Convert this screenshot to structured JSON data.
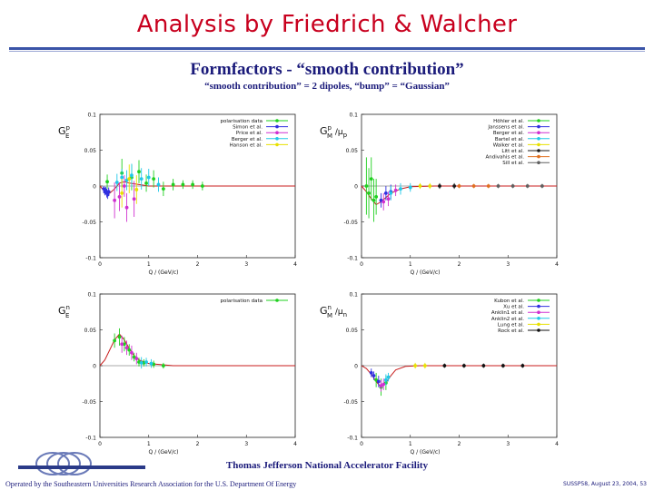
{
  "slide": {
    "title": "Analysis by Friedrich & Walcher",
    "heading": "Formfactors - “smooth contribution”",
    "subheading": "“smooth contribution” = 2 dipoles, “bump” = “Gaussian”",
    "footer_org": "Thomas Jefferson National Accelerator Facility",
    "footer_operated": "Operated by the Southeastern Universities Research Association for the U.S. Department Of Energy",
    "footer_date": "SUSSP58, August 23, 2004, 53",
    "logo_text": "Jefferson Lab",
    "colors": {
      "title": "#c8001e",
      "text": "#1a1a7a",
      "rule": "#3a54a8",
      "fit_curve": "#c81e1e"
    }
  },
  "chart_data": [
    {
      "type": "scatter",
      "ylabel": "G_E^p",
      "xlabel": "Q / (GeV/c)",
      "xlim": [
        0,
        4
      ],
      "ylim": [
        -0.1,
        0.1
      ],
      "xticks": [
        "0",
        "1",
        "2",
        "3",
        "4"
      ],
      "yticks": [
        "0.1",
        "0.05",
        "0",
        "-0.05",
        "-0.1"
      ],
      "legend_position": "top-right",
      "series": [
        {
          "name": "polarisation data",
          "color": "#1fd01f",
          "points": [
            [
              0.15,
              0.006
            ],
            [
              0.45,
              0.018
            ],
            [
              0.65,
              0.012
            ],
            [
              0.8,
              0.02
            ],
            [
              0.95,
              0.004
            ],
            [
              1.1,
              0.01
            ],
            [
              1.3,
              -0.004
            ],
            [
              1.5,
              0.002
            ],
            [
              1.7,
              0.002
            ],
            [
              1.9,
              0.002
            ],
            [
              2.1,
              0.0
            ]
          ],
          "err": [
            0.01,
            0.02,
            0.018,
            0.016,
            0.012,
            0.012,
            0.01,
            0.008,
            0.006,
            0.006,
            0.006
          ]
        },
        {
          "name": "Simon et al.",
          "color": "#3030e0",
          "points": [
            [
              0.08,
              -0.004
            ],
            [
              0.1,
              -0.008
            ],
            [
              0.12,
              -0.006
            ],
            [
              0.14,
              -0.01
            ],
            [
              0.16,
              -0.012
            ],
            [
              0.18,
              -0.008
            ]
          ],
          "err": [
            0.004,
            0.005,
            0.005,
            0.006,
            0.006,
            0.006
          ]
        },
        {
          "name": "Price et al.",
          "color": "#d030d0",
          "points": [
            [
              0.3,
              -0.02
            ],
            [
              0.4,
              -0.015
            ],
            [
              0.5,
              0.0
            ],
            [
              0.55,
              -0.03
            ],
            [
              0.7,
              -0.018
            ]
          ],
          "err": [
            0.025,
            0.02,
            0.015,
            0.02,
            0.025
          ]
        },
        {
          "name": "Berger et al.",
          "color": "#20c8e8",
          "points": [
            [
              0.35,
              0.005
            ],
            [
              0.45,
              0.012
            ],
            [
              0.55,
              0.008
            ],
            [
              0.65,
              0.015
            ],
            [
              0.85,
              0.01
            ],
            [
              1.0,
              0.012
            ],
            [
              1.2,
              0.002
            ]
          ],
          "err": [
            0.012,
            0.012,
            0.014,
            0.016,
            0.015,
            0.012,
            0.01
          ]
        },
        {
          "name": "Hanson et al.",
          "color": "#e8e000",
          "points": [
            [
              0.45,
              -0.01
            ],
            [
              0.6,
              0.01
            ],
            [
              0.75,
              -0.005
            ]
          ],
          "err": [
            0.02,
            0.02,
            0.02
          ]
        }
      ],
      "fit": [
        [
          0,
          0
        ],
        [
          0.1,
          -0.008
        ],
        [
          0.2,
          -0.01
        ],
        [
          0.3,
          -0.004
        ],
        [
          0.4,
          0.004
        ],
        [
          0.5,
          0.006
        ],
        [
          0.6,
          0.004
        ],
        [
          0.8,
          0.002
        ],
        [
          1.0,
          0.0
        ],
        [
          1.5,
          0.0
        ],
        [
          4,
          0
        ]
      ]
    },
    {
      "type": "scatter",
      "ylabel": "G_M^p / μ_p",
      "xlabel": "Q / (GeV/c)",
      "xlim": [
        0,
        4
      ],
      "ylim": [
        -0.1,
        0.1
      ],
      "xticks": [
        "0",
        "1",
        "2",
        "3",
        "4"
      ],
      "yticks": [
        "0.1",
        "0.05",
        "0",
        "-0.05",
        "-0.1"
      ],
      "legend_position": "top-right",
      "series": [
        {
          "name": "Höhler et al.",
          "color": "#1fd01f",
          "points": [
            [
              0.1,
              0.0
            ],
            [
              0.15,
              -0.01
            ],
            [
              0.2,
              0.01
            ],
            [
              0.25,
              -0.02
            ],
            [
              0.3,
              -0.015
            ]
          ],
          "err": [
            0.04,
            0.035,
            0.03,
            0.03,
            0.025
          ]
        },
        {
          "name": "Janssens et al.",
          "color": "#3030e0",
          "points": [
            [
              0.4,
              -0.02
            ],
            [
              0.5,
              -0.01
            ],
            [
              0.6,
              -0.008
            ]
          ],
          "err": [
            0.01,
            0.01,
            0.01
          ]
        },
        {
          "name": "Berger et al.",
          "color": "#d030d0",
          "points": [
            [
              0.45,
              -0.022
            ],
            [
              0.55,
              -0.018
            ],
            [
              0.7,
              -0.006
            ]
          ],
          "err": [
            0.012,
            0.01,
            0.008
          ]
        },
        {
          "name": "Bartel et al.",
          "color": "#20c8e8",
          "points": [
            [
              0.6,
              -0.01
            ],
            [
              0.8,
              -0.004
            ],
            [
              1.0,
              -0.002
            ]
          ],
          "err": [
            0.01,
            0.008,
            0.006
          ]
        },
        {
          "name": "Walker et al.",
          "color": "#e8e000",
          "points": [
            [
              1.2,
              0.0
            ],
            [
              1.4,
              0.0
            ]
          ],
          "err": [
            0.004,
            0.004
          ]
        },
        {
          "name": "Litt et al.",
          "color": "#1a1a1a",
          "points": [
            [
              1.6,
              0.0
            ],
            [
              1.9,
              0.0
            ]
          ],
          "err": [
            0.004,
            0.004
          ]
        },
        {
          "name": "Andivahis et al.",
          "color": "#e07020",
          "points": [
            [
              2.0,
              0.0
            ],
            [
              2.3,
              0.0
            ],
            [
              2.6,
              0.0
            ]
          ],
          "err": [
            0.003,
            0.003,
            0.003
          ]
        },
        {
          "name": "Sill et al.",
          "color": "#606060",
          "points": [
            [
              2.8,
              0.0
            ],
            [
              3.1,
              0.0
            ],
            [
              3.4,
              0.0
            ],
            [
              3.7,
              0.0
            ]
          ],
          "err": [
            0.003,
            0.003,
            0.003,
            0.003
          ]
        }
      ],
      "fit": [
        [
          0,
          0
        ],
        [
          0.1,
          -0.008
        ],
        [
          0.2,
          -0.018
        ],
        [
          0.3,
          -0.026
        ],
        [
          0.4,
          -0.022
        ],
        [
          0.5,
          -0.016
        ],
        [
          0.6,
          -0.01
        ],
        [
          0.8,
          -0.004
        ],
        [
          1.0,
          -0.001
        ],
        [
          1.5,
          0
        ],
        [
          4,
          0
        ]
      ]
    },
    {
      "type": "scatter",
      "ylabel": "G_E^n",
      "xlabel": "Q / (GeV/c)",
      "xlim": [
        0,
        4
      ],
      "ylim": [
        -0.1,
        0.1
      ],
      "xticks": [
        "0",
        "1",
        "2",
        "3",
        "4"
      ],
      "yticks": [
        "0.1",
        "0.05",
        "0",
        "-0.05",
        "-0.1"
      ],
      "legend_position": "top-right",
      "series": [
        {
          "name": "polarisation data",
          "color": "#1fd01f",
          "points": [
            [
              0.3,
              0.035
            ],
            [
              0.4,
              0.04
            ],
            [
              0.5,
              0.03
            ],
            [
              0.6,
              0.022
            ],
            [
              0.7,
              0.012
            ],
            [
              0.8,
              0.005
            ],
            [
              0.9,
              0.004
            ],
            [
              1.1,
              0.002
            ],
            [
              1.3,
              0.0
            ]
          ],
          "err": [
            0.01,
            0.012,
            0.01,
            0.008,
            0.006,
            0.006,
            0.005,
            0.005,
            0.004
          ]
        },
        {
          "name": "",
          "color": "#d030d0",
          "points": [
            [
              0.45,
              0.03
            ],
            [
              0.55,
              0.025
            ],
            [
              0.65,
              0.018
            ],
            [
              0.75,
              0.01
            ]
          ],
          "err": [
            0.012,
            0.01,
            0.01,
            0.008
          ]
        },
        {
          "name": "",
          "color": "#20c8e8",
          "points": [
            [
              0.85,
              0.004
            ],
            [
              0.95,
              0.005
            ],
            [
              1.05,
              0.003
            ]
          ],
          "err": [
            0.008,
            0.006,
            0.006
          ]
        }
      ],
      "fit": [
        [
          0,
          0
        ],
        [
          0.1,
          0.008
        ],
        [
          0.2,
          0.022
        ],
        [
          0.3,
          0.036
        ],
        [
          0.4,
          0.044
        ],
        [
          0.5,
          0.036
        ],
        [
          0.6,
          0.024
        ],
        [
          0.7,
          0.014
        ],
        [
          0.8,
          0.008
        ],
        [
          1.0,
          0.003
        ],
        [
          1.5,
          0
        ],
        [
          4,
          0
        ]
      ]
    },
    {
      "type": "scatter",
      "ylabel": "G_M^n / μ_n",
      "xlabel": "Q / (GeV/c)",
      "xlim": [
        0,
        4
      ],
      "ylim": [
        -0.1,
        0.1
      ],
      "xticks": [
        "0",
        "1",
        "2",
        "3",
        "4"
      ],
      "yticks": [
        "0.1",
        "0.05",
        "0",
        "-0.05",
        "-0.1"
      ],
      "legend_position": "top-right",
      "series": [
        {
          "name": "Kubon et al.",
          "color": "#1fd01f",
          "points": [
            [
              0.3,
              -0.02
            ],
            [
              0.4,
              -0.03
            ],
            [
              0.5,
              -0.024
            ]
          ],
          "err": [
            0.01,
            0.012,
            0.01
          ]
        },
        {
          "name": "Xu et al.",
          "color": "#3030e0",
          "points": [
            [
              0.2,
              -0.01
            ],
            [
              0.25,
              -0.014
            ],
            [
              0.35,
              -0.022
            ]
          ],
          "err": [
            0.006,
            0.006,
            0.008
          ]
        },
        {
          "name": "Anklin1 et al.",
          "color": "#d030d0",
          "points": [
            [
              0.4,
              -0.028
            ],
            [
              0.45,
              -0.026
            ]
          ],
          "err": [
            0.008,
            0.008
          ]
        },
        {
          "name": "Anklin2 et al.",
          "color": "#20c8e8",
          "points": [
            [
              0.5,
              -0.02
            ],
            [
              0.55,
              -0.016
            ]
          ],
          "err": [
            0.008,
            0.006
          ]
        },
        {
          "name": "Lung et al.",
          "color": "#e8e000",
          "points": [
            [
              1.1,
              0.0
            ],
            [
              1.3,
              0.0
            ]
          ],
          "err": [
            0.004,
            0.004
          ]
        },
        {
          "name": "Rock et al.",
          "color": "#111111",
          "points": [
            [
              1.7,
              0.0
            ],
            [
              2.1,
              0.0
            ],
            [
              2.5,
              0.0
            ],
            [
              2.9,
              0.0
            ],
            [
              3.3,
              0.0
            ]
          ],
          "err": [
            0.003,
            0.003,
            0.003,
            0.003,
            0.003
          ]
        }
      ],
      "fit": [
        [
          0,
          0
        ],
        [
          0.1,
          -0.004
        ],
        [
          0.2,
          -0.012
        ],
        [
          0.3,
          -0.022
        ],
        [
          0.4,
          -0.03
        ],
        [
          0.5,
          -0.024
        ],
        [
          0.6,
          -0.014
        ],
        [
          0.7,
          -0.006
        ],
        [
          0.9,
          -0.001
        ],
        [
          1.2,
          0
        ],
        [
          4,
          0
        ]
      ]
    }
  ]
}
